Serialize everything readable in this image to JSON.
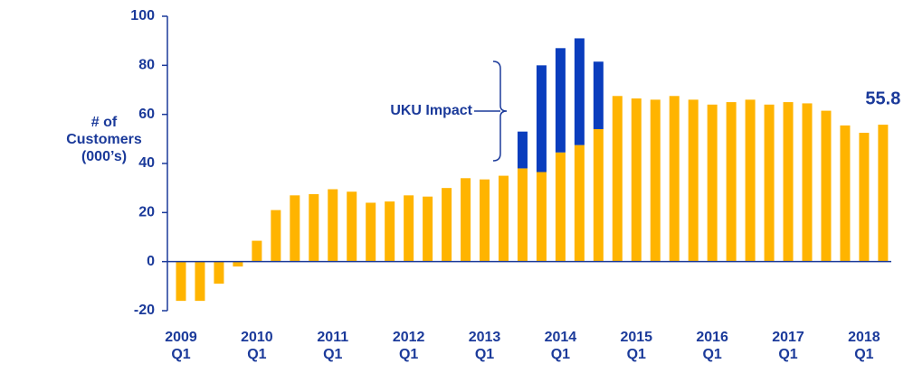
{
  "chart_data": {
    "type": "stacked_bar",
    "y_label": "# of\nCustomers\n(000’s)",
    "annotation_series": 1,
    "categories": [
      "2009\nQ1",
      null,
      null,
      null,
      "2010\nQ1",
      null,
      null,
      null,
      "2011\nQ1",
      null,
      null,
      null,
      "2012\nQ1",
      null,
      null,
      null,
      "2013\nQ1",
      null,
      null,
      null,
      "2014\nQ1",
      null,
      null,
      null,
      "2015\nQ1",
      null,
      null,
      null,
      "2016\nQ1",
      null,
      null,
      null,
      "2017\nQ1",
      null,
      null,
      null,
      "2018\nQ1",
      null
    ],
    "series": [
      {
        "color": "#ffb400",
        "values": [
          -16,
          -16,
          -9,
          -2,
          8.5,
          21,
          27,
          27.5,
          29.5,
          28.5,
          24,
          24.5,
          27,
          26.5,
          30,
          34,
          33.5,
          35,
          38,
          36.5,
          44.5,
          47.5,
          54,
          67.5,
          66.5,
          66,
          67.5,
          66,
          64,
          65,
          66,
          64,
          65,
          64.5,
          61.5,
          55.5,
          52.5,
          55.8
        ]
      },
      {
        "name": "UKU Impact",
        "color": "#0a3dbd",
        "values": [
          0,
          0,
          0,
          0,
          0,
          0,
          0,
          0,
          0,
          0,
          0,
          0,
          0,
          0,
          0,
          0,
          0,
          0,
          15,
          43.5,
          42.5,
          43.5,
          27.5,
          0,
          0,
          0,
          0,
          0,
          0,
          0,
          0,
          0,
          0,
          0,
          0,
          0,
          0,
          0
        ]
      }
    ],
    "value_label_index": 37,
    "ylim": [
      -20,
      100
    ],
    "yticks": [
      -20,
      0,
      20,
      40,
      60,
      80,
      100
    ]
  }
}
